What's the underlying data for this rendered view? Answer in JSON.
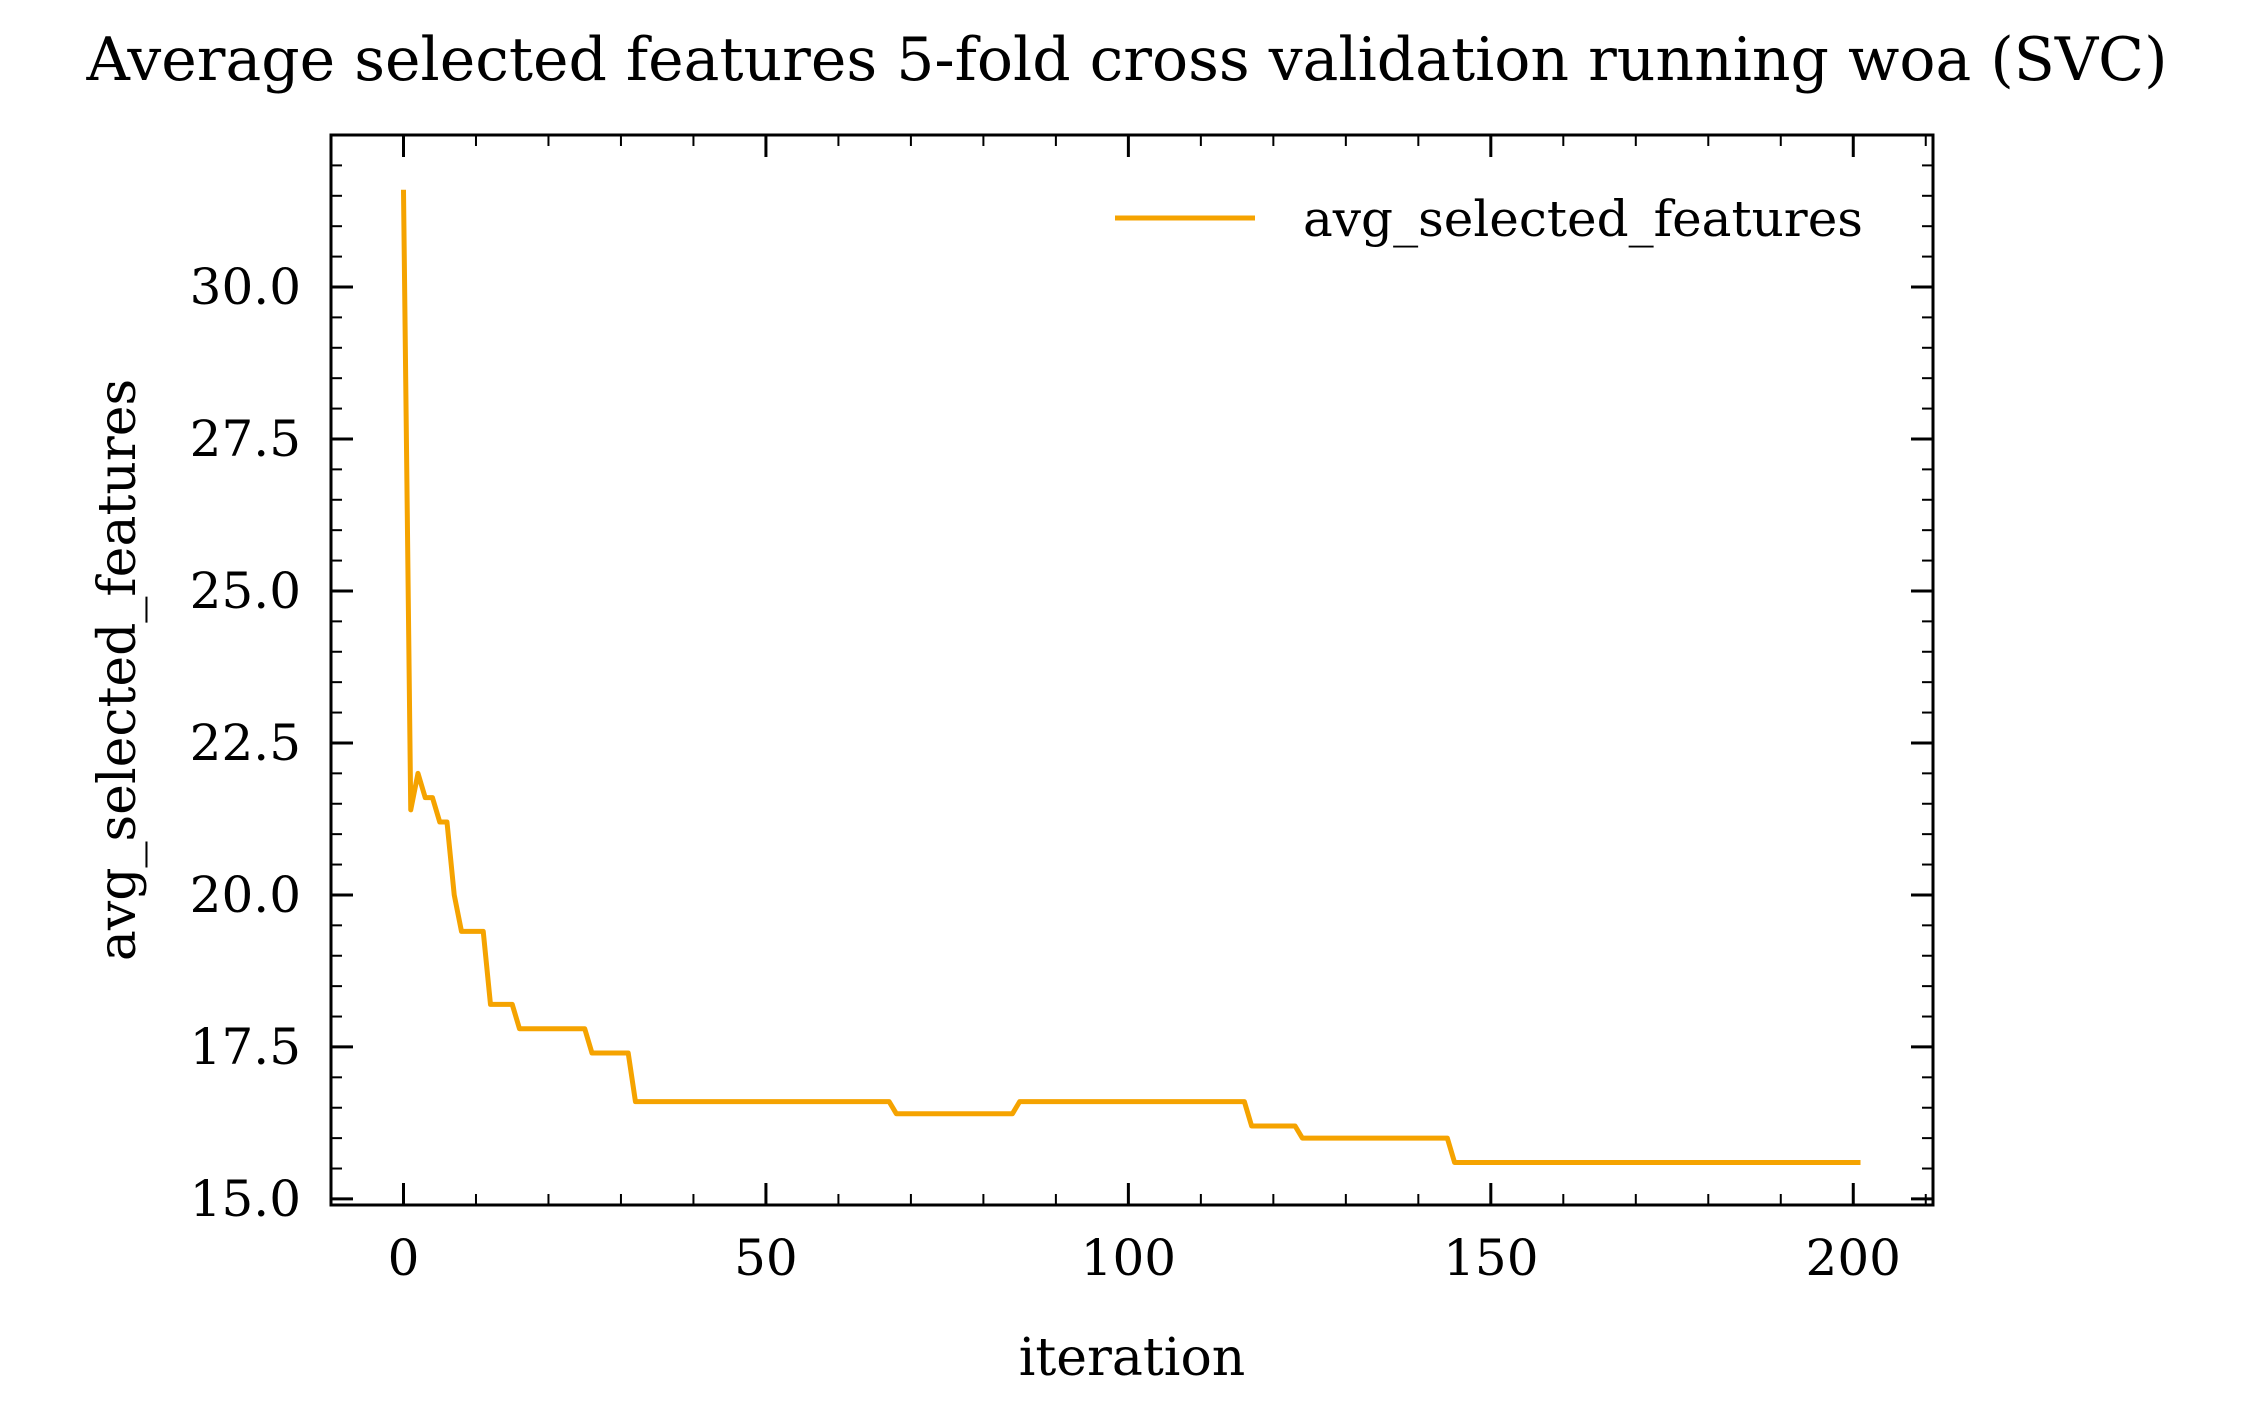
{
  "chart_data": {
    "type": "line",
    "title": "Average selected features 5-fold cross validation running woa (SVC)",
    "xlabel": "iteration",
    "ylabel": "avg_selected_features",
    "xlim": [
      -10,
      211
    ],
    "ylim": [
      14.9,
      32.5
    ],
    "xticks": [
      0,
      50,
      100,
      150,
      200
    ],
    "xtick_labels": [
      "0",
      "50",
      "100",
      "150",
      "200"
    ],
    "yticks": [
      15.0,
      17.5,
      20.0,
      22.5,
      25.0,
      27.5,
      30.0
    ],
    "ytick_labels": [
      "15.0",
      "17.5",
      "20.0",
      "22.5",
      "25.0",
      "27.5",
      "30.0"
    ],
    "grid": false,
    "legend_position": "top-right",
    "series": [
      {
        "name": "avg_selected_features",
        "color": "#f5a300",
        "x": [
          0,
          1,
          2,
          3,
          4,
          5,
          6,
          7,
          8,
          11,
          12,
          15,
          16,
          25,
          26,
          31,
          32,
          67,
          68,
          84,
          85,
          116,
          117,
          123,
          124,
          144,
          145,
          201
        ],
        "y": [
          31.6,
          21.4,
          22.0,
          21.6,
          21.6,
          21.2,
          21.2,
          20.0,
          19.4,
          19.4,
          18.2,
          18.2,
          17.8,
          17.8,
          17.4,
          17.4,
          16.6,
          16.6,
          16.4,
          16.4,
          16.6,
          16.6,
          16.2,
          16.2,
          16.0,
          16.0,
          15.6,
          15.6
        ]
      }
    ]
  }
}
